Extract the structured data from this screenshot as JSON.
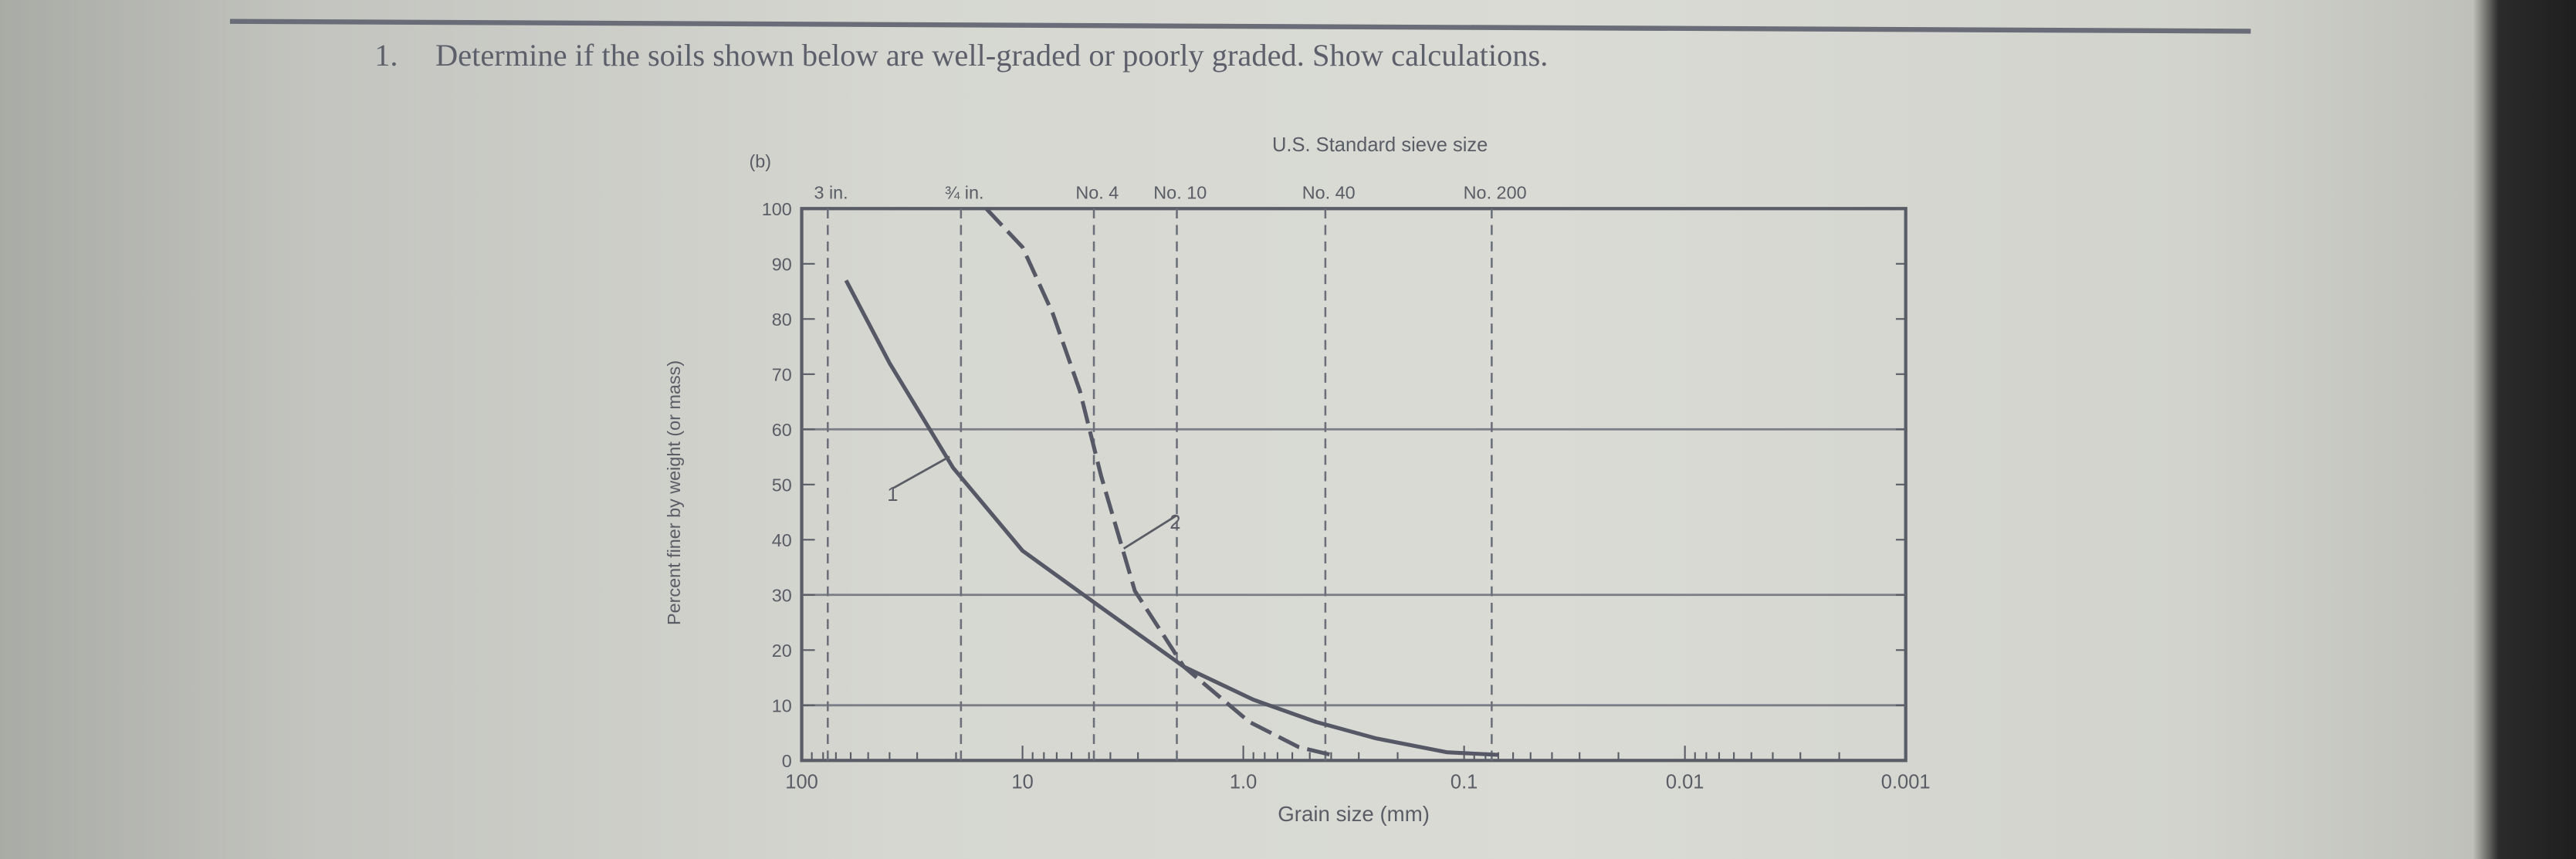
{
  "question": {
    "number": "1.",
    "text": "Determine if the soils shown below are well-graded or poorly graded. Show calculations."
  },
  "chart_data": {
    "type": "line",
    "panel_label": "(b)",
    "xlabel": "Grain size (mm)",
    "ylabel": "Percent finer by weight (or mass)",
    "top_axis_title": "U.S. Standard sieve size",
    "x_scale": "log",
    "x_reversed": true,
    "xlim": [
      100,
      0.001
    ],
    "ylim": [
      0,
      100
    ],
    "x_ticks": [
      {
        "v": 100,
        "label": "100"
      },
      {
        "v": 10,
        "label": "10"
      },
      {
        "v": 1,
        "label": "1.0"
      },
      {
        "v": 0.1,
        "label": "0.1"
      },
      {
        "v": 0.01,
        "label": "0.01"
      },
      {
        "v": 0.001,
        "label": "0.001"
      }
    ],
    "y_ticks": [
      0,
      10,
      20,
      30,
      40,
      50,
      60,
      70,
      80,
      90,
      100
    ],
    "gridlines_y": [
      10,
      30,
      60
    ],
    "sieves": [
      {
        "label": "3 in.",
        "size": 76.2
      },
      {
        "label": "¾ in.",
        "size": 19
      },
      {
        "label": "No. 4",
        "size": 4.75
      },
      {
        "label": "No. 10",
        "size": 2.0
      },
      {
        "label": "No. 40",
        "size": 0.425
      },
      {
        "label": "No. 200",
        "size": 0.075
      }
    ],
    "series": [
      {
        "name": "1",
        "style": "solid",
        "x": [
          63,
          40,
          20.6,
          10,
          4.4,
          1.86,
          0.9,
          0.47,
          0.25,
          0.12,
          0.07
        ],
        "y": [
          87,
          72,
          53,
          38,
          27.7,
          17,
          11,
          7,
          4,
          1.5,
          1
        ]
      },
      {
        "name": "2",
        "style": "dashed",
        "x": [
          14.6,
          10,
          7.3,
          5.5,
          4.4,
          3.1,
          1.86,
          0.94,
          0.56,
          0.4
        ],
        "y": [
          100,
          93,
          81,
          67,
          51.5,
          30.7,
          17,
          7,
          2.4,
          1
        ]
      }
    ],
    "curve_labels": [
      {
        "text": "1",
        "series": "1"
      },
      {
        "text": "2",
        "series": "2"
      }
    ]
  },
  "colors": {
    "ink": "#5a5c66",
    "paper": "#d8d9d3"
  }
}
